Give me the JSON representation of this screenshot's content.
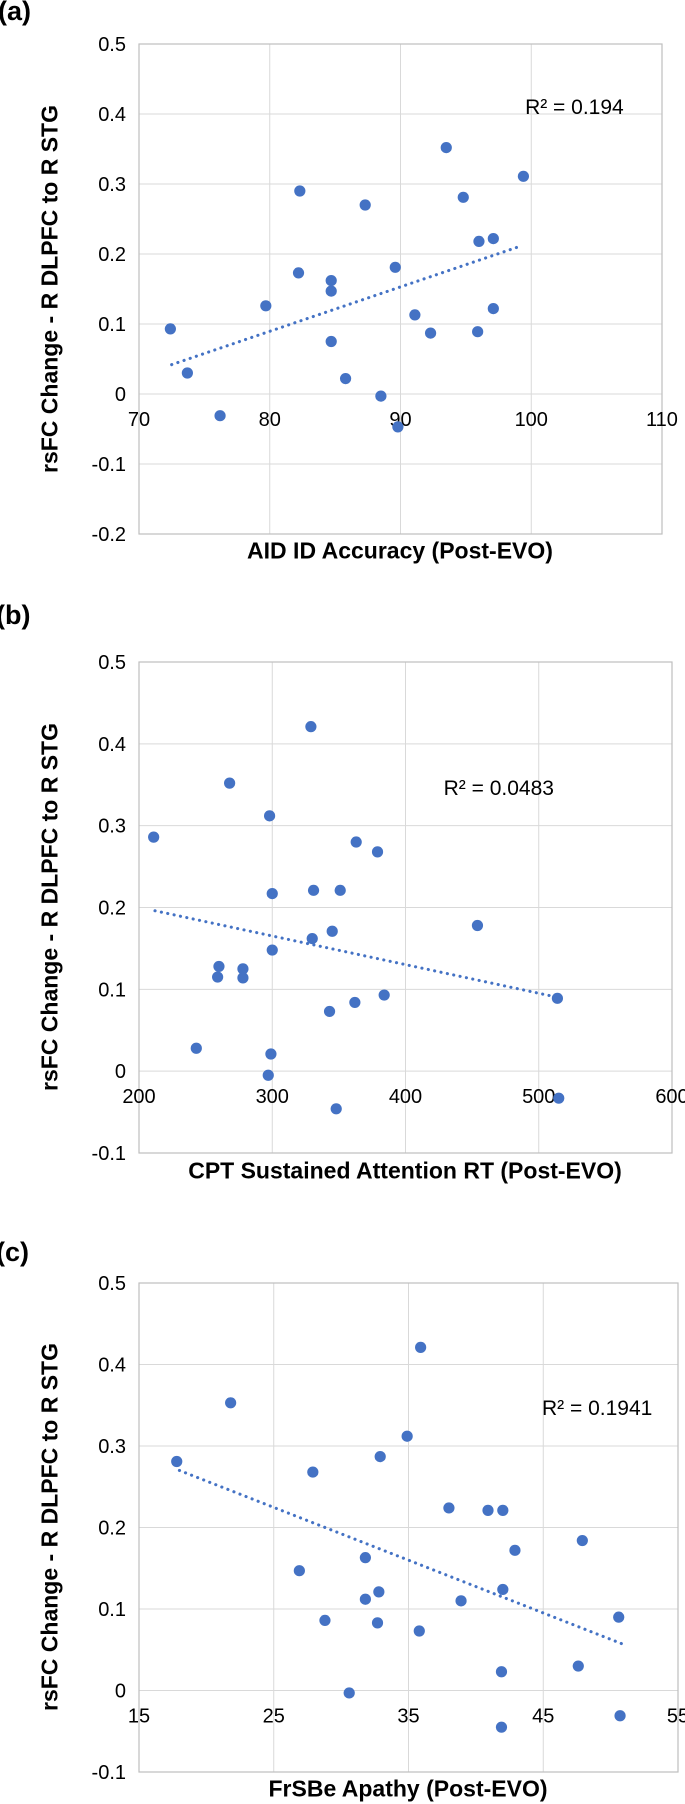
{
  "page": {
    "background": "#FFFFFF"
  },
  "colors": {
    "point": "#4472C4",
    "trendline": "#4472C4",
    "gridline": "#D9D9D9",
    "plot_border": "#BFBFBF",
    "text": "#000000"
  },
  "chart_data": [
    {
      "type": "scatter",
      "panel_label": "(a)",
      "xlabel": "AID ID Accuracy (Post-EVO)",
      "ylabel": "rsFC Change - R DLPFC to R STG",
      "xlim": [
        70,
        110
      ],
      "ylim": [
        -0.2,
        0.5
      ],
      "grid": true,
      "xticks": [
        {
          "v": 70,
          "label": "70"
        },
        {
          "v": 80,
          "label": "80"
        },
        {
          "v": 90,
          "label": "90"
        },
        {
          "v": 100,
          "label": "100"
        },
        {
          "v": 110,
          "label": "110"
        }
      ],
      "yticks": [
        {
          "v": 0.5,
          "label": "0.5"
        },
        {
          "v": 0.4,
          "label": "0.4"
        },
        {
          "v": 0.3,
          "label": "0.3"
        },
        {
          "v": 0.2,
          "label": "0.2"
        },
        {
          "v": 0.1,
          "label": "0.1"
        },
        {
          "v": 0,
          "label": "0"
        },
        {
          "v": -0.1,
          "label": "-0.1"
        },
        {
          "v": -0.2,
          "label": "-0.2"
        }
      ],
      "r2_label": "R² = 0.194",
      "r2_pos": {
        "x": 103.3,
        "y": 0.408
      },
      "trendline": {
        "x1": 72.5,
        "y1": 0.042,
        "x2": 99.3,
        "y2": 0.212,
        "style": "dotted"
      },
      "points": [
        [
          72.4,
          0.093
        ],
        [
          73.7,
          0.03
        ],
        [
          76.2,
          -0.031
        ],
        [
          79.7,
          0.126
        ],
        [
          82.2,
          0.173
        ],
        [
          82.3,
          0.29
        ],
        [
          84.7,
          0.162
        ],
        [
          84.7,
          0.147
        ],
        [
          84.7,
          0.075
        ],
        [
          85.8,
          0.022
        ],
        [
          87.3,
          0.27
        ],
        [
          88.5,
          -0.003
        ],
        [
          89.6,
          0.181
        ],
        [
          89.8,
          -0.047
        ],
        [
          91.1,
          0.113
        ],
        [
          92.3,
          0.087
        ],
        [
          93.5,
          0.352
        ],
        [
          94.8,
          0.281
        ],
        [
          95.9,
          0.089
        ],
        [
          96.0,
          0.218
        ],
        [
          97.1,
          0.222
        ],
        [
          97.1,
          0.122
        ],
        [
          99.4,
          0.311
        ]
      ]
    },
    {
      "type": "scatter",
      "panel_label": "(b)",
      "xlabel": "CPT Sustained Attention RT (Post-EVO)",
      "ylabel": "rsFC Change - R DLPFC to R STG",
      "xlim": [
        200,
        600
      ],
      "ylim": [
        -0.1,
        0.5
      ],
      "grid": true,
      "xticks": [
        {
          "v": 200,
          "label": "200"
        },
        {
          "v": 300,
          "label": "300"
        },
        {
          "v": 400,
          "label": "400"
        },
        {
          "v": 500,
          "label": "500"
        },
        {
          "v": 600,
          "label": "600"
        }
      ],
      "yticks": [
        {
          "v": 0.5,
          "label": "0.5"
        },
        {
          "v": 0.4,
          "label": "0.4"
        },
        {
          "v": 0.3,
          "label": "0.3"
        },
        {
          "v": 0.2,
          "label": "0.2"
        },
        {
          "v": 0.1,
          "label": "0.1"
        },
        {
          "v": 0,
          "label": "0"
        },
        {
          "v": -0.1,
          "label": "-0.1"
        }
      ],
      "r2_label": "R² = 0.0483",
      "r2_pos": {
        "x": 470,
        "y": 0.345
      },
      "trendline": {
        "x1": 212,
        "y1": 0.196,
        "x2": 512,
        "y2": 0.091,
        "style": "dotted"
      },
      "points": [
        [
          211,
          0.286
        ],
        [
          243,
          0.028
        ],
        [
          259,
          0.115
        ],
        [
          260,
          0.128
        ],
        [
          268,
          0.352
        ],
        [
          278,
          0.114
        ],
        [
          278,
          0.125
        ],
        [
          297,
          -0.005
        ],
        [
          298,
          0.312
        ],
        [
          299,
          0.021
        ],
        [
          300,
          0.148
        ],
        [
          300,
          0.217
        ],
        [
          329,
          0.421
        ],
        [
          330,
          0.162
        ],
        [
          331,
          0.221
        ],
        [
          343,
          0.073
        ],
        [
          345,
          0.171
        ],
        [
          348,
          -0.046
        ],
        [
          351,
          0.221
        ],
        [
          362,
          0.084
        ],
        [
          363,
          0.28
        ],
        [
          379,
          0.268
        ],
        [
          384,
          0.093
        ],
        [
          454,
          0.178
        ],
        [
          514,
          0.089
        ],
        [
          515,
          -0.033
        ]
      ]
    },
    {
      "type": "scatter",
      "panel_label": "(c)",
      "xlabel": "FrSBe Apathy (Post-EVO)",
      "ylabel": "rsFC Change - R DLPFC to R STG",
      "xlim": [
        15,
        55
      ],
      "ylim": [
        -0.1,
        0.5
      ],
      "grid": true,
      "xticks": [
        {
          "v": 15,
          "label": "15"
        },
        {
          "v": 25,
          "label": "25"
        },
        {
          "v": 35,
          "label": "35"
        },
        {
          "v": 45,
          "label": "45"
        },
        {
          "v": 55,
          "label": "55"
        }
      ],
      "yticks": [
        {
          "v": 0.5,
          "label": "0.5"
        },
        {
          "v": 0.4,
          "label": "0.4"
        },
        {
          "v": 0.3,
          "label": "0.3"
        },
        {
          "v": 0.2,
          "label": "0.2"
        },
        {
          "v": 0.1,
          "label": "0.1"
        },
        {
          "v": 0,
          "label": "0"
        },
        {
          "v": -0.1,
          "label": "-0.1"
        }
      ],
      "r2_label": "R² = 0.1941",
      "r2_pos": {
        "x": 49.0,
        "y": 0.345
      },
      "trendline": {
        "x1": 18.0,
        "y1": 0.27,
        "x2": 51.2,
        "y2": 0.055,
        "style": "dotted"
      },
      "points": [
        [
          17.8,
          0.281
        ],
        [
          21.8,
          0.353
        ],
        [
          26.9,
          0.147
        ],
        [
          27.9,
          0.268
        ],
        [
          28.8,
          0.086
        ],
        [
          30.6,
          -0.003
        ],
        [
          31.8,
          0.163
        ],
        [
          31.8,
          0.112
        ],
        [
          32.7,
          0.083
        ],
        [
          32.8,
          0.121
        ],
        [
          32.9,
          0.287
        ],
        [
          34.9,
          0.312
        ],
        [
          35.8,
          0.073
        ],
        [
          35.9,
          0.421
        ],
        [
          38.0,
          0.224
        ],
        [
          38.9,
          0.11
        ],
        [
          40.9,
          0.221
        ],
        [
          41.9,
          0.023
        ],
        [
          41.9,
          -0.045
        ],
        [
          42.0,
          0.221
        ],
        [
          42.0,
          0.124
        ],
        [
          42.9,
          0.172
        ],
        [
          47.6,
          0.03
        ],
        [
          47.9,
          0.184
        ],
        [
          50.6,
          0.09
        ],
        [
          50.7,
          -0.031
        ]
      ]
    }
  ]
}
